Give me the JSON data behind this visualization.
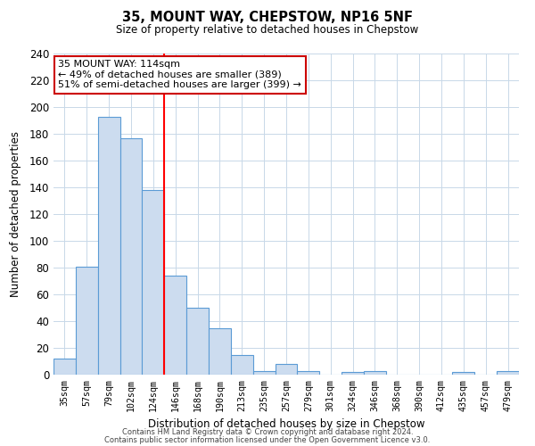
{
  "title": "35, MOUNT WAY, CHEPSTOW, NP16 5NF",
  "subtitle": "Size of property relative to detached houses in Chepstow",
  "xlabel": "Distribution of detached houses by size in Chepstow",
  "ylabel": "Number of detached properties",
  "bin_labels": [
    "35sqm",
    "57sqm",
    "79sqm",
    "102sqm",
    "124sqm",
    "146sqm",
    "168sqm",
    "190sqm",
    "213sqm",
    "235sqm",
    "257sqm",
    "279sqm",
    "301sqm",
    "324sqm",
    "346sqm",
    "368sqm",
    "390sqm",
    "412sqm",
    "435sqm",
    "457sqm",
    "479sqm"
  ],
  "bar_values": [
    12,
    81,
    193,
    177,
    138,
    74,
    50,
    35,
    15,
    3,
    8,
    3,
    0,
    2,
    3,
    0,
    0,
    0,
    2,
    0,
    3
  ],
  "bar_color": "#ccdcef",
  "bar_edge_color": "#5b9bd5",
  "ylim": [
    0,
    240
  ],
  "yticks": [
    0,
    20,
    40,
    60,
    80,
    100,
    120,
    140,
    160,
    180,
    200,
    220,
    240
  ],
  "property_label": "35 MOUNT WAY: 114sqm",
  "annotation_line1": "← 49% of detached houses are smaller (389)",
  "annotation_line2": "51% of semi-detached houses are larger (399) →",
  "red_line_x": 4.5,
  "annotation_box_color": "#ffffff",
  "annotation_box_edge_color": "#cc0000",
  "bg_color": "#ffffff",
  "grid_color": "#c8d8e8",
  "footer_line1": "Contains HM Land Registry data © Crown copyright and database right 2024.",
  "footer_line2": "Contains public sector information licensed under the Open Government Licence v3.0."
}
